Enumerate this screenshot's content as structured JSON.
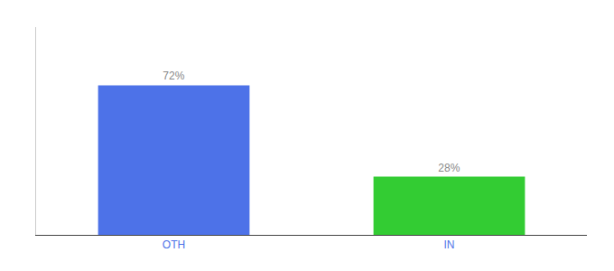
{
  "chart_data": {
    "type": "bar",
    "categories": [
      "OTH",
      "IN"
    ],
    "values": [
      72,
      28
    ],
    "value_labels": [
      "72%",
      "28%"
    ],
    "colors": [
      "#4d72e8",
      "#33cc33"
    ],
    "ylim": [
      0,
      100
    ],
    "grid": false,
    "data_labels": true,
    "tick_labels": "x"
  }
}
